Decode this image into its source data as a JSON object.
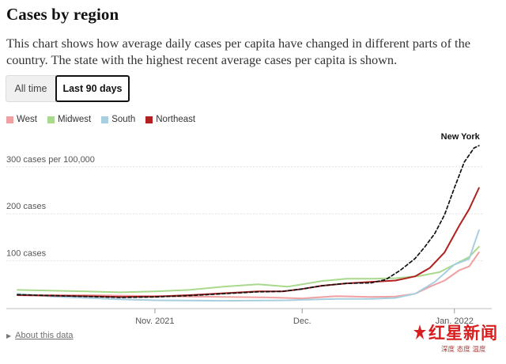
{
  "header": {
    "title": "Cases by region",
    "description": "This chart shows how average daily cases per capita have changed in different parts of the country. The state with the highest recent average cases per capita is shown."
  },
  "toggle": {
    "all_time": "All time",
    "last_90_days": "Last 90 days",
    "selected": "Last 90 days"
  },
  "footer": {
    "about": "About this data"
  },
  "watermark": {
    "main": "红星新闻",
    "sub": "深度 态度 温度"
  },
  "chart_data": {
    "type": "line",
    "x_unit": "date",
    "xlim": [
      "2021-10-04",
      "2022-01-07"
    ],
    "ylim": [
      0,
      350
    ],
    "y_gridlines": [
      100,
      200,
      300
    ],
    "y_tick_labels": [
      "100 cases",
      "200 cases",
      "300 cases per 100,000"
    ],
    "x_ticks": [
      {
        "date": "2021-11-01",
        "label": "Nov. 2021"
      },
      {
        "date": "2021-12-01",
        "label": "Dec."
      },
      {
        "date": "2022-01-01",
        "label": "Jan. 2022"
      }
    ],
    "legend_position": "top-left",
    "series": [
      {
        "name": "West",
        "color": "#f0a0a0",
        "style": "solid",
        "points": [
          [
            "2021-10-04",
            27
          ],
          [
            "2021-10-18",
            27
          ],
          [
            "2021-11-01",
            25
          ],
          [
            "2021-11-15",
            23
          ],
          [
            "2021-11-24",
            22
          ],
          [
            "2021-12-01",
            20
          ],
          [
            "2021-12-08",
            25
          ],
          [
            "2021-12-15",
            23
          ],
          [
            "2021-12-20",
            24
          ],
          [
            "2021-12-24",
            30
          ],
          [
            "2021-12-27",
            45
          ],
          [
            "2021-12-30",
            58
          ],
          [
            "2022-01-02",
            80
          ],
          [
            "2022-01-04",
            88
          ],
          [
            "2022-01-06",
            118
          ]
        ]
      },
      {
        "name": "Midwest",
        "color": "#a9d98c",
        "style": "solid",
        "points": [
          [
            "2021-10-04",
            38
          ],
          [
            "2021-10-18",
            35
          ],
          [
            "2021-10-25",
            33
          ],
          [
            "2021-11-01",
            35
          ],
          [
            "2021-11-08",
            38
          ],
          [
            "2021-11-15",
            45
          ],
          [
            "2021-11-22",
            50
          ],
          [
            "2021-11-28",
            45
          ],
          [
            "2021-12-01",
            50
          ],
          [
            "2021-12-05",
            57
          ],
          [
            "2021-12-10",
            62
          ],
          [
            "2021-12-15",
            62
          ],
          [
            "2021-12-20",
            63
          ],
          [
            "2021-12-25",
            68
          ],
          [
            "2021-12-29",
            76
          ],
          [
            "2022-01-01",
            92
          ],
          [
            "2022-01-04",
            108
          ],
          [
            "2022-01-06",
            130
          ]
        ]
      },
      {
        "name": "South",
        "color": "#a7cfe0",
        "style": "solid",
        "points": [
          [
            "2021-10-04",
            30
          ],
          [
            "2021-10-11",
            24
          ],
          [
            "2021-10-18",
            21
          ],
          [
            "2021-10-25",
            18
          ],
          [
            "2021-11-01",
            16
          ],
          [
            "2021-11-15",
            15
          ],
          [
            "2021-11-28",
            16
          ],
          [
            "2021-12-01",
            17
          ],
          [
            "2021-12-08",
            19
          ],
          [
            "2021-12-15",
            19
          ],
          [
            "2021-12-20",
            21
          ],
          [
            "2021-12-24",
            30
          ],
          [
            "2021-12-28",
            55
          ],
          [
            "2022-01-01",
            92
          ],
          [
            "2022-01-03",
            100
          ],
          [
            "2022-01-04",
            104
          ],
          [
            "2022-01-05",
            135
          ],
          [
            "2022-01-06",
            165
          ]
        ]
      },
      {
        "name": "Northeast",
        "color": "#b1211f",
        "style": "solid",
        "points": [
          [
            "2021-10-04",
            27
          ],
          [
            "2021-10-18",
            25
          ],
          [
            "2021-10-25",
            23
          ],
          [
            "2021-11-01",
            24
          ],
          [
            "2021-11-08",
            27
          ],
          [
            "2021-11-15",
            31
          ],
          [
            "2021-11-22",
            35
          ],
          [
            "2021-11-27",
            35
          ],
          [
            "2021-12-01",
            40
          ],
          [
            "2021-12-05",
            47
          ],
          [
            "2021-12-10",
            52
          ],
          [
            "2021-12-15",
            55
          ],
          [
            "2021-12-20",
            58
          ],
          [
            "2021-12-24",
            67
          ],
          [
            "2021-12-27",
            85
          ],
          [
            "2021-12-30",
            118
          ],
          [
            "2022-01-02",
            175
          ],
          [
            "2022-01-04",
            210
          ],
          [
            "2022-01-06",
            255
          ]
        ]
      },
      {
        "name": "New York",
        "color": "#121212",
        "style": "dashed",
        "points": [
          [
            "2021-10-04",
            28
          ],
          [
            "2021-10-18",
            24
          ],
          [
            "2021-10-25",
            22
          ],
          [
            "2021-11-01",
            23
          ],
          [
            "2021-11-08",
            26
          ],
          [
            "2021-11-15",
            30
          ],
          [
            "2021-11-22",
            34
          ],
          [
            "2021-11-27",
            35
          ],
          [
            "2021-12-01",
            40
          ],
          [
            "2021-12-05",
            47
          ],
          [
            "2021-12-10",
            52
          ],
          [
            "2021-12-15",
            53
          ],
          [
            "2021-12-18",
            60
          ],
          [
            "2021-12-21",
            80
          ],
          [
            "2021-12-24",
            105
          ],
          [
            "2021-12-26",
            130
          ],
          [
            "2021-12-28",
            158
          ],
          [
            "2021-12-30",
            198
          ],
          [
            "2022-01-01",
            255
          ],
          [
            "2022-01-03",
            310
          ],
          [
            "2022-01-05",
            340
          ],
          [
            "2022-01-06",
            345
          ]
        ]
      }
    ],
    "annotations": [
      {
        "series": "New York",
        "label": "New York"
      }
    ]
  }
}
